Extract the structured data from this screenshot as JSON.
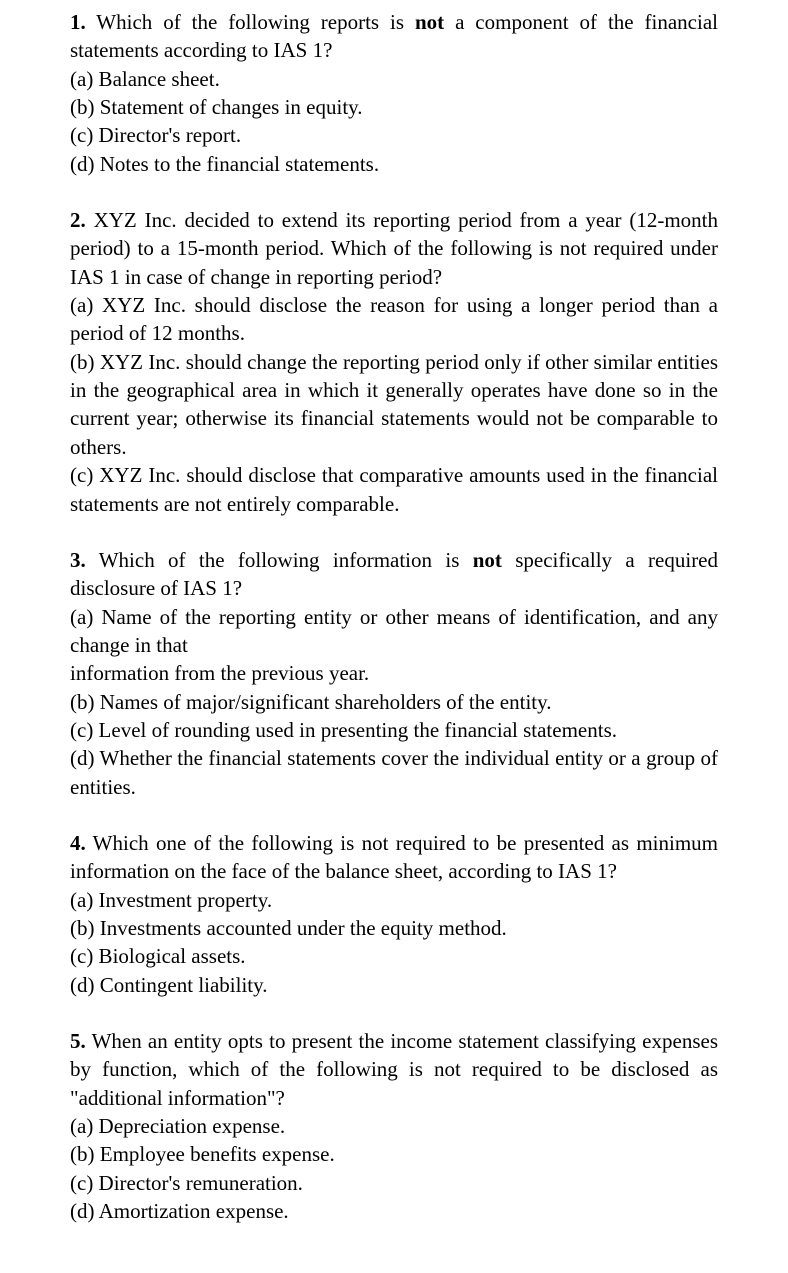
{
  "questions": [
    {
      "number_bold": "1.",
      "text_part1": " Which of the following reports is ",
      "text_bold": "not",
      "text_part2": " a component of the financial statements according to IAS 1?",
      "options": [
        "(a) Balance sheet.",
        "(b) Statement of changes in equity.",
        "(c) Director's report.",
        "(d) Notes to the financial statements."
      ]
    },
    {
      "number_bold": "2.",
      "text_part1": " XYZ Inc. decided to extend its reporting period from a year (12-month period) to a 15-month period. Which of the following is not required under IAS 1 in case of change in reporting period?",
      "text_bold": "",
      "text_part2": "",
      "options": [
        "(a) XYZ Inc. should disclose the reason for using a longer period than a period of 12 months.",
        "(b) XYZ Inc. should change the reporting period only if other similar entities in the geographical area in which it generally operates have done so in the current year; otherwise its financial statements would not be comparable to others.",
        "(c) XYZ Inc. should disclose that comparative amounts used in the financial statements are not entirely comparable."
      ]
    },
    {
      "number_bold": "3.",
      "text_part1": " Which of the following information is ",
      "text_bold": "not",
      "text_part2": " specifically a required disclosure of IAS 1?",
      "options": [
        "(a) Name of the reporting entity or other means of identification, and any change in that",
        "information from the previous year.",
        "(b) Names of major/significant shareholders of the entity.",
        "(c) Level of rounding used in presenting the financial statements.",
        "(d) Whether the financial statements cover the individual entity or a group of entities."
      ]
    },
    {
      "number_bold": "4.",
      "text_part1": " Which one of the following is not required to be presented as minimum information on the face of the balance sheet, according to IAS 1?",
      "text_bold": "",
      "text_part2": "",
      "options": [
        "(a) Investment property.",
        "(b) Investments accounted under the equity method.",
        "(c) Biological assets.",
        "(d) Contingent liability."
      ]
    },
    {
      "number_bold": "5.",
      "text_part1": " When an entity opts to present the income statement classifying expenses by function, which of the following is not required to be disclosed as \"additional information\"?",
      "text_bold": "",
      "text_part2": "",
      "options": [
        "(a) Depreciation expense.",
        "(b) Employee benefits expense.",
        "(c) Director's remuneration.",
        "(d) Amortization expense."
      ]
    }
  ]
}
